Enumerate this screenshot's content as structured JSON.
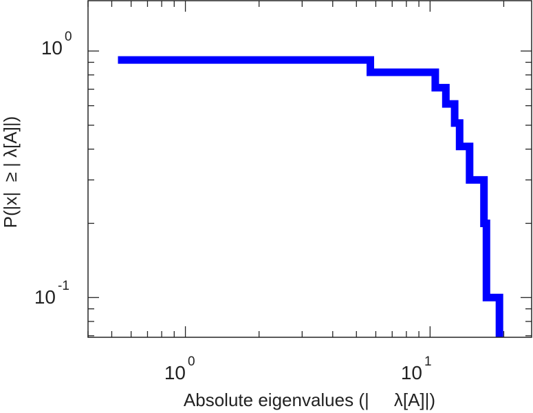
{
  "chart_data": {
    "type": "line",
    "subtype": "step-ccdf",
    "title": "",
    "xlabel": "Absolute eigenvalues (|     λ[A]|)",
    "ylabel": "P(|x|  ≥ | λ[A]|)",
    "x_scale": "log",
    "y_scale": "log",
    "xlim": [
      0.4,
      26
    ],
    "ylim": [
      0.069,
      1.6
    ],
    "grid": false,
    "legend": "none",
    "x_ticks": [
      {
        "base": "10",
        "exp": "0",
        "value": 1
      },
      {
        "base": "10",
        "exp": "1",
        "value": 10
      }
    ],
    "y_ticks": [
      {
        "base": "10",
        "exp": "0",
        "value": 1
      },
      {
        "base": "10",
        "exp": "-1",
        "value": 0.1
      }
    ],
    "series": [
      {
        "color": "#0000ff",
        "points": [
          {
            "x": 0.53,
            "y": 0.92
          },
          {
            "x": 5.7,
            "y": 0.92
          },
          {
            "x": 5.7,
            "y": 0.82
          },
          {
            "x": 10.5,
            "y": 0.82
          },
          {
            "x": 10.5,
            "y": 0.71
          },
          {
            "x": 11.6,
            "y": 0.71
          },
          {
            "x": 11.6,
            "y": 0.61
          },
          {
            "x": 12.6,
            "y": 0.61
          },
          {
            "x": 12.6,
            "y": 0.51
          },
          {
            "x": 13.2,
            "y": 0.51
          },
          {
            "x": 13.2,
            "y": 0.41
          },
          {
            "x": 14.5,
            "y": 0.41
          },
          {
            "x": 14.5,
            "y": 0.3
          },
          {
            "x": 16.6,
            "y": 0.3
          },
          {
            "x": 16.6,
            "y": 0.2
          },
          {
            "x": 17.0,
            "y": 0.2
          },
          {
            "x": 17.0,
            "y": 0.1
          },
          {
            "x": 19.2,
            "y": 0.1
          },
          {
            "x": 19.2,
            "y": 0.069
          }
        ]
      }
    ]
  }
}
